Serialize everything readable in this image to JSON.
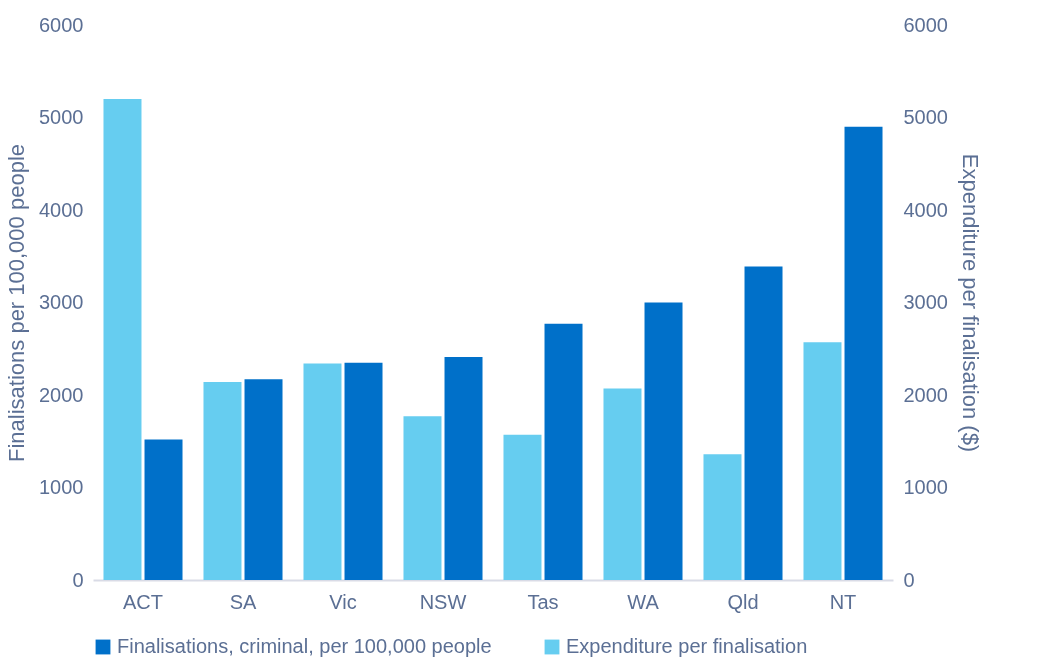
{
  "chart_data": {
    "type": "bar",
    "categories": [
      "ACT",
      "SA",
      "Vic",
      "NSW",
      "Tas",
      "WA",
      "Qld",
      "NT"
    ],
    "series": [
      {
        "name": "Finalisations, criminal, per 100,000 people",
        "color": "#0070c9",
        "values": [
          1520,
          2170,
          2350,
          2410,
          2770,
          3000,
          3390,
          4900
        ]
      },
      {
        "name": "Expenditure per finalisation",
        "color": "#66cdf0",
        "axis": "y2",
        "values": [
          5200,
          2140,
          2340,
          1770,
          1570,
          2070,
          1360,
          2570
        ]
      }
    ],
    "ylabel": "Finalisations per 100,000 people",
    "y2label": "Expenditure per finalisation ($)",
    "ylim": [
      0,
      6000
    ],
    "yticks": [
      0,
      1000,
      2000,
      3000,
      4000,
      5000,
      6000
    ],
    "y2lim": [
      0,
      6000
    ],
    "y2ticks": [
      0,
      1000,
      2000,
      3000,
      4000,
      5000,
      6000
    ],
    "grid": false,
    "legend": "bottom"
  }
}
